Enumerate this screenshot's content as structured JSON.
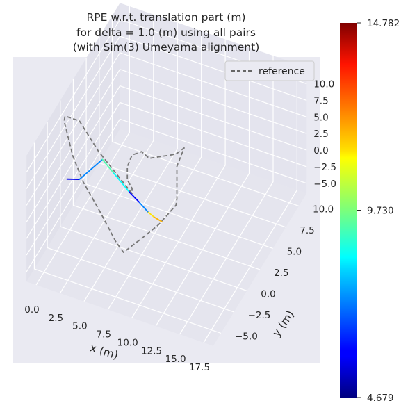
{
  "chart_data": {
    "type": "line",
    "title": [
      "RPE w.r.t. translation part (m)",
      "for delta = 1.0 (m) using all pairs",
      "(with Sim(3) Umeyama alignment)"
    ],
    "xlabel": "x (m)",
    "ylabel": "y (m)",
    "zlabel": "",
    "x_ticks": [
      "0.0",
      "2.5",
      "5.0",
      "7.5",
      "10.0",
      "12.5",
      "15.0",
      "17.5"
    ],
    "y_ticks": [
      "−5.0",
      "−2.5",
      "0.0",
      "2.5",
      "5.0",
      "7.5",
      "10.0"
    ],
    "z_ticks": [
      "−5.0",
      "−2.5",
      "0.0",
      "2.5",
      "5.0",
      "7.5",
      "10.0"
    ],
    "xlim": [
      -1,
      18.5
    ],
    "ylim": [
      -6.5,
      11.5
    ],
    "zlim": [
      -6.5,
      12.5
    ],
    "legend": {
      "placement": "top-right",
      "entries": [
        "reference"
      ]
    },
    "colorbar": {
      "colormap": "jet",
      "min": 4.679,
      "max": 14.782,
      "tick_values": [
        4.679,
        9.73,
        14.782
      ],
      "tick_labels": [
        "4.679",
        "9.730",
        "14.782"
      ]
    },
    "series": [
      {
        "name": "reference",
        "style": "dashed",
        "color": "#777777",
        "points": [
          [
            0.3,
            0.0,
            4.8
          ],
          [
            1.4,
            0.0,
            1.4
          ],
          [
            3.2,
            0.0,
            -2.3
          ],
          [
            4.8,
            0.0,
            -5.9
          ],
          [
            5.6,
            0.0,
            -7.1
          ],
          [
            6.0,
            3.0,
            -8.5
          ],
          [
            6.3,
            5.5,
            -9.6
          ],
          [
            6.6,
            7.6,
            -9.8
          ],
          [
            6.8,
            7.9,
            -9.5
          ],
          [
            6.9,
            7.9,
            -8.5
          ],
          [
            6.9,
            7.9,
            -7.5
          ],
          [
            6.9,
            7.9,
            -3.6
          ],
          [
            8.3,
            6.7,
            1.4
          ],
          [
            8.9,
            4.0,
            4.2
          ],
          [
            8.3,
            0.0,
            8.4
          ],
          [
            7.5,
            0.0,
            9.0
          ],
          [
            6.5,
            0.0,
            8.0
          ],
          [
            6.0,
            0.0,
            6.0
          ],
          [
            6.0,
            0.0,
            4.0
          ],
          [
            6.5,
            0.0,
            3.0
          ],
          [
            6.5,
            0.0,
            2.2
          ],
          [
            3.0,
            0.0,
            6.8
          ],
          [
            1.0,
            0.0,
            10.4
          ],
          [
            -0.5,
            0.0,
            10.4
          ],
          [
            -0.6,
            0.0,
            9.6
          ],
          [
            0.3,
            0.0,
            4.8
          ]
        ]
      },
      {
        "name": "",
        "style": "colored-by-error",
        "points": [
          [
            -0.3,
            0.0,
            1.0
          ],
          [
            1.0,
            0.0,
            1.6
          ],
          [
            3.4,
            0.0,
            5.8
          ],
          [
            4.6,
            0.0,
            4.3
          ],
          [
            6.2,
            0.0,
            2.3
          ],
          [
            7.3,
            0.0,
            1.2
          ],
          [
            8.2,
            0.0,
            0.2
          ],
          [
            8.8,
            0.0,
            -0.2
          ],
          [
            9.6,
            0.0,
            -0.5
          ]
        ],
        "error": [
          5.5,
          6.0,
          8.5,
          10.0,
          7.0,
          5.0,
          9.5,
          13.0,
          10.5
        ]
      }
    ]
  }
}
